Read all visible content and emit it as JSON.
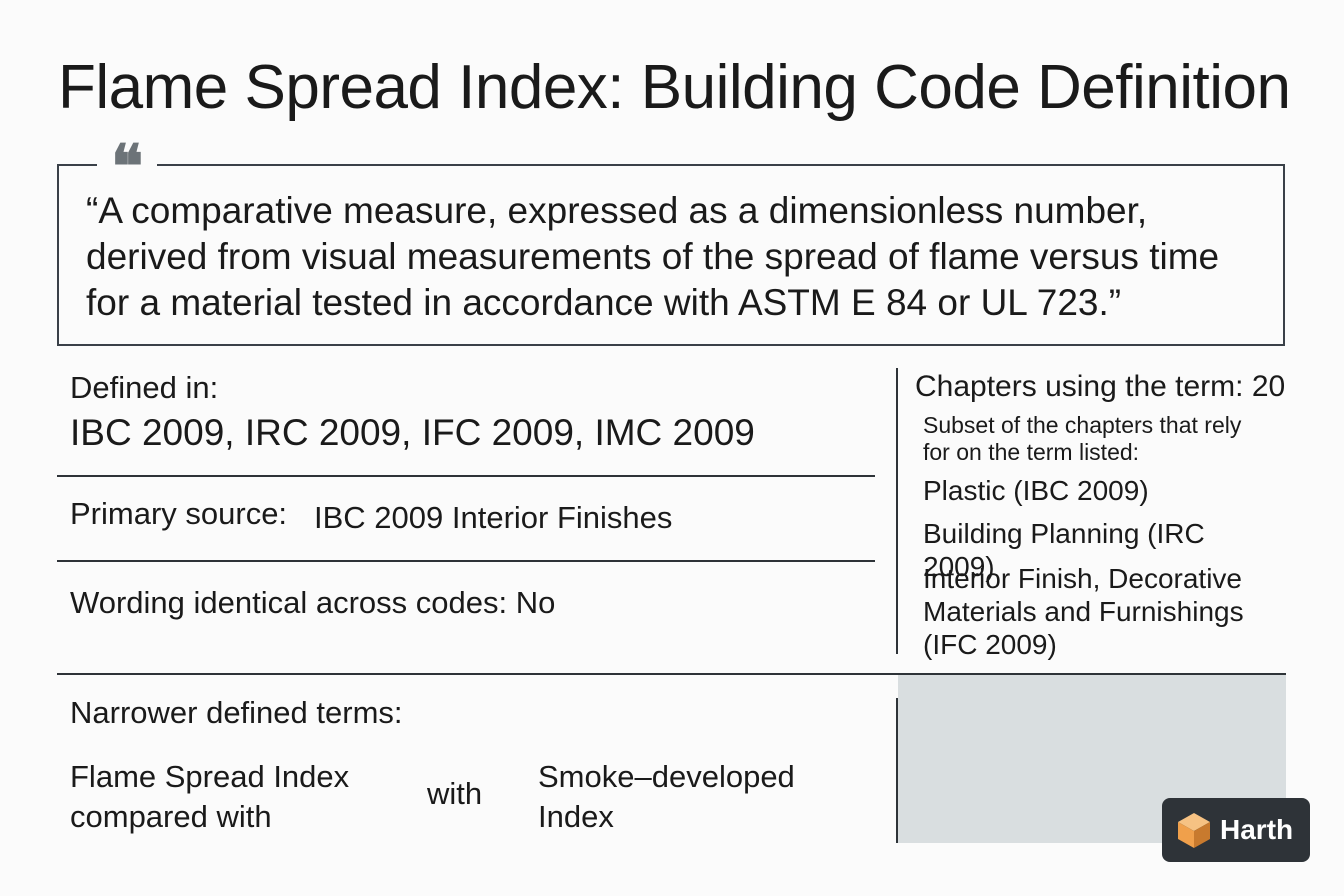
{
  "title": "Flame Spread Index: Building Code Definition",
  "quote": {
    "icon": "quotation-mark-icon",
    "glyph": "❝",
    "text": "“A comparative measure, expressed as a dimensionless number, derived from visual measurements of the spread of flame versus time for a material tested in accordance with ASTM E 84 or UL 723.”"
  },
  "defined_in": {
    "label": "Defined in:",
    "value": "IBC 2009, IRC 2009, IFC 2009, IMC 2009"
  },
  "primary_source": {
    "label": "Primary source:",
    "value": "IBC 2009 Interior Finishes"
  },
  "wording": {
    "label": "Wording identical across codes: No"
  },
  "chapters": {
    "title": "Chapters using the term: 20",
    "note": "Subset of the chapters that rely for on the term listed:",
    "items": [
      "Plastic (IBC 2009)",
      "Building Planning (IRC 2009)",
      "Interior Finish, Decorative Materials and Furnishings (IFC 2009)"
    ]
  },
  "narrower": {
    "label": "Narrower defined terms:",
    "left": "Flame Spread Index compared with",
    "connector": "with",
    "right": "Smoke–developed Index"
  },
  "brand": {
    "name": "Harth",
    "logo_icon": "hexagon-cube-logo-icon",
    "colors": {
      "badge": "#2e3338",
      "logo_orange": "#f0a04b",
      "logo_light": "#f6c283",
      "logo_dark": "#c87a2e"
    }
  }
}
